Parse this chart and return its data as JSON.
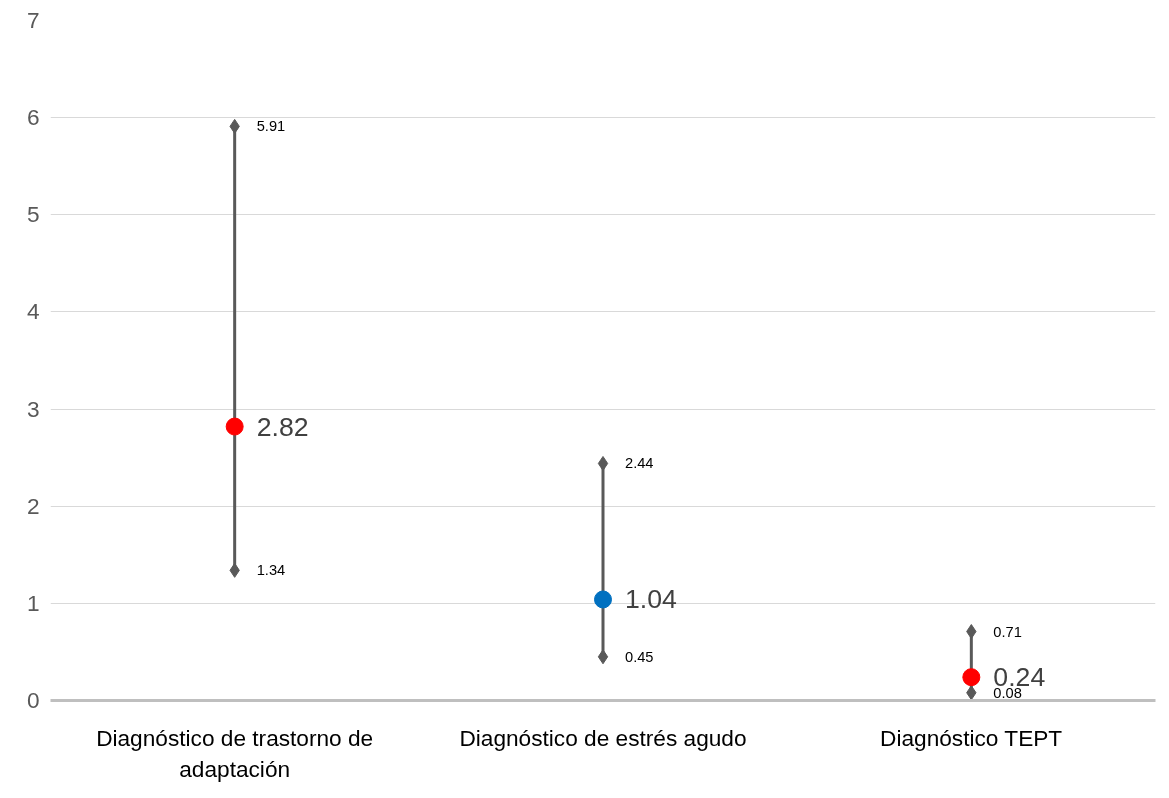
{
  "chart_data": {
    "type": "scatter",
    "categories": [
      "Diagnóstico de trastorno de adaptación",
      "Diagnóstico de estrés agudo",
      "Diagnóstico TEPT"
    ],
    "series": [
      {
        "type": "line",
        "x": [
          "Diagnóstico de trastorno de adaptación",
          "Diagnóstico de trastorno de adaptación"
        ],
        "values": [
          1.34,
          5.91
        ],
        "color": "#595959",
        "marker": "diamond"
      },
      {
        "type": "line",
        "x": [
          "Diagnóstico de estrés agudo",
          "Diagnóstico de estrés agudo"
        ],
        "values": [
          0.45,
          2.44
        ],
        "color": "#595959",
        "marker": "diamond"
      },
      {
        "type": "line",
        "x": [
          "Diagnóstico TEPT",
          "Diagnóstico TEPT"
        ],
        "values": [
          0.08,
          0.71
        ],
        "color": "#595959",
        "marker": "diamond"
      },
      {
        "values": [
          2.82,
          1.04,
          0.24
        ],
        "colors": [
          "#ff0000",
          "#0070c0",
          "#ff0000"
        ],
        "marker": "circle"
      }
    ],
    "ylim": [
      0,
      7
    ],
    "yticks": [
      0,
      1,
      2,
      3,
      4,
      5,
      6,
      7
    ],
    "grid": "y",
    "data_labels": true,
    "legend": false
  }
}
